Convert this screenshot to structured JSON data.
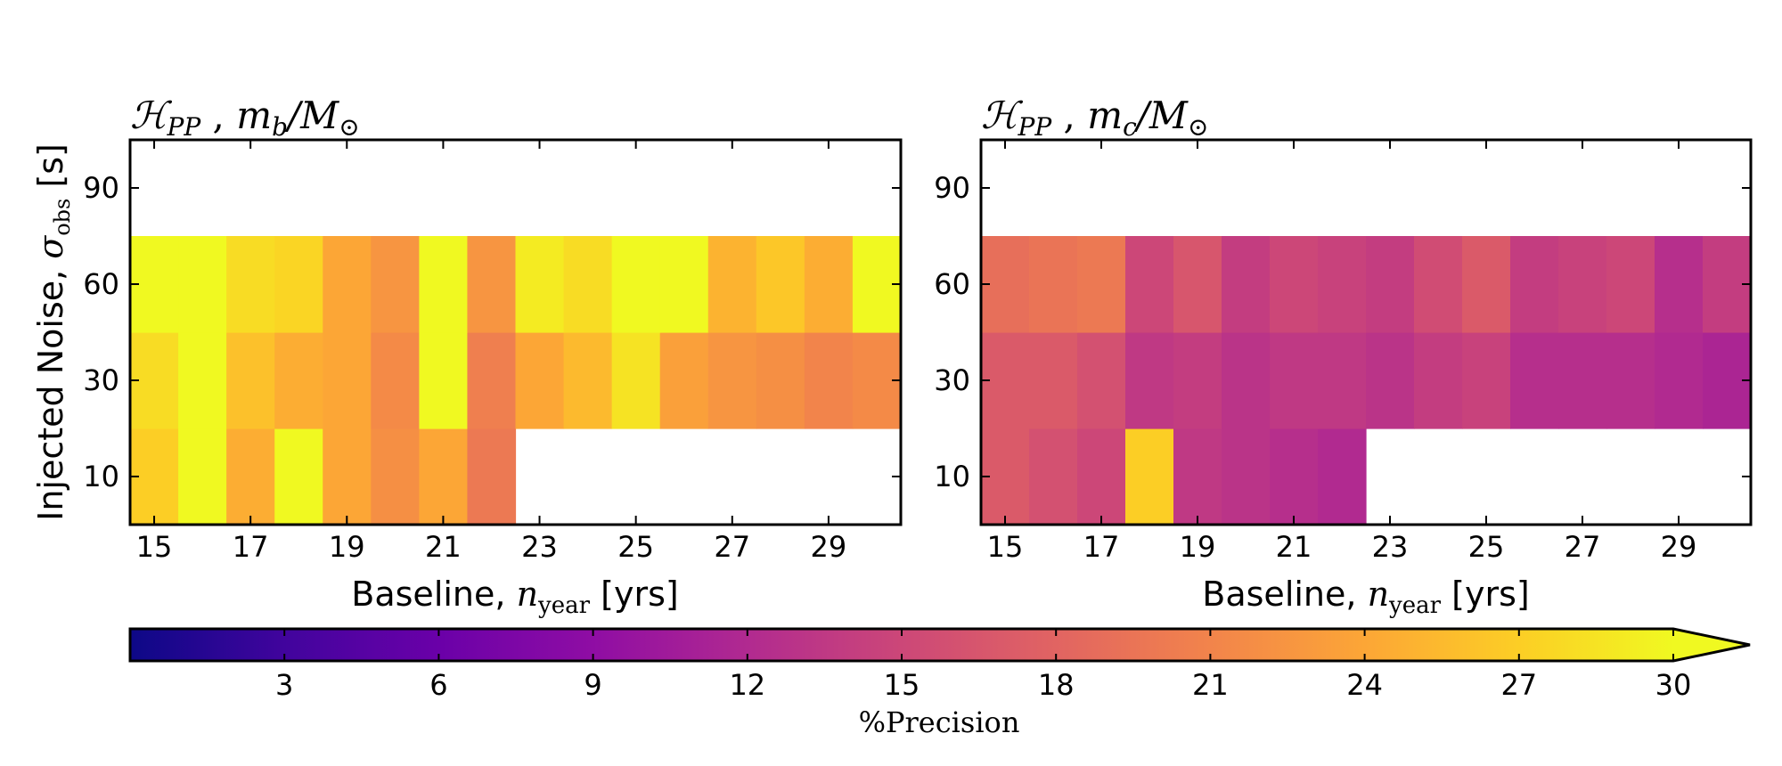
{
  "chart_data": [
    {
      "type": "heatmap",
      "title": "ℋ_PP , m_b/M_⊙",
      "title_parts": {
        "H": "ℋ",
        "Hsub": "PP",
        "sep": " , ",
        "m": "m",
        "msub": "b",
        "rest": "/M",
        "sun": "⊙"
      },
      "xlabel_parts": {
        "pre": "Baseline, ",
        "n": "n",
        "sub": "year",
        "post": " [yrs]"
      },
      "ylabel_parts": {
        "pre": "Injected Noise, ",
        "s": "σ",
        "sub": "obs",
        "post": " [s]"
      },
      "x": [
        15,
        16,
        17,
        18,
        19,
        20,
        21,
        22,
        23,
        24,
        25,
        26,
        27,
        28,
        29,
        30
      ],
      "xticks": [
        15,
        17,
        19,
        21,
        23,
        25,
        27,
        29
      ],
      "xticklabels": [
        "15",
        "17",
        "19",
        "21",
        "23",
        "25",
        "27",
        "29"
      ],
      "y": [
        10,
        30,
        60,
        90
      ],
      "yticks": [
        10,
        30,
        60,
        90
      ],
      "yticklabels": [
        "10",
        "30",
        "60",
        "90"
      ],
      "z": [
        [
          27.0,
          30.0,
          24.5,
          30.0,
          24.0,
          22.0,
          24.0,
          20.0,
          null,
          null,
          null,
          null,
          null,
          null,
          null,
          null
        ],
        [
          28.0,
          30.0,
          26.0,
          24.5,
          24.0,
          21.5,
          30.0,
          20.5,
          24.0,
          25.5,
          28.5,
          23.5,
          22.5,
          22.0,
          21.0,
          21.5
        ],
        [
          30.0,
          30.0,
          28.0,
          27.5,
          24.0,
          22.5,
          30.0,
          22.5,
          29.0,
          28.0,
          30.0,
          30.0,
          25.0,
          26.5,
          24.5,
          30.0
        ],
        [
          null,
          null,
          null,
          null,
          null,
          null,
          null,
          null,
          null,
          null,
          null,
          null,
          null,
          null,
          null,
          null
        ]
      ]
    },
    {
      "type": "heatmap",
      "title": "ℋ_PP , m_c/M_⊙",
      "title_parts": {
        "H": "ℋ",
        "Hsub": "PP",
        "sep": " , ",
        "m": "m",
        "msub": "c",
        "rest": "/M",
        "sun": "⊙"
      },
      "xlabel_parts": {
        "pre": "Baseline, ",
        "n": "n",
        "sub": "year",
        "post": " [yrs]"
      },
      "x": [
        15,
        16,
        17,
        18,
        19,
        20,
        21,
        22,
        23,
        24,
        25,
        26,
        27,
        28,
        29,
        30
      ],
      "xticks": [
        15,
        17,
        19,
        21,
        23,
        25,
        27,
        29
      ],
      "xticklabels": [
        "15",
        "17",
        "19",
        "21",
        "23",
        "25",
        "27",
        "29"
      ],
      "y": [
        10,
        30,
        60,
        90
      ],
      "yticks": [
        10,
        30,
        60,
        90
      ],
      "yticklabels": [
        "10",
        "30",
        "60",
        "90"
      ],
      "z": [
        [
          17.0,
          16.0,
          15.0,
          27.0,
          13.5,
          13.0,
          12.5,
          12.0,
          null,
          null,
          null,
          null,
          null,
          null,
          null,
          null
        ],
        [
          17.0,
          17.0,
          16.0,
          13.5,
          14.0,
          13.0,
          13.5,
          13.5,
          13.0,
          14.0,
          14.5,
          12.5,
          12.5,
          12.5,
          12.0,
          11.5
        ],
        [
          19.0,
          19.5,
          20.0,
          15.0,
          16.5,
          14.0,
          15.0,
          14.5,
          14.0,
          15.5,
          17.0,
          14.0,
          14.5,
          15.0,
          12.5,
          14.0
        ],
        [
          null,
          null,
          null,
          null,
          null,
          null,
          null,
          null,
          null,
          null,
          null,
          null,
          null,
          null,
          null,
          null
        ]
      ]
    }
  ],
  "colorbar": {
    "colormap": "plasma",
    "min": 0.0,
    "max": 30.0,
    "extend": "max",
    "ticks": [
      3,
      6,
      9,
      12,
      15,
      18,
      21,
      24,
      27,
      30
    ],
    "ticklabels": [
      "3",
      "6",
      "9",
      "12",
      "15",
      "18",
      "21",
      "24",
      "27",
      "30"
    ],
    "label": "%Precision"
  }
}
